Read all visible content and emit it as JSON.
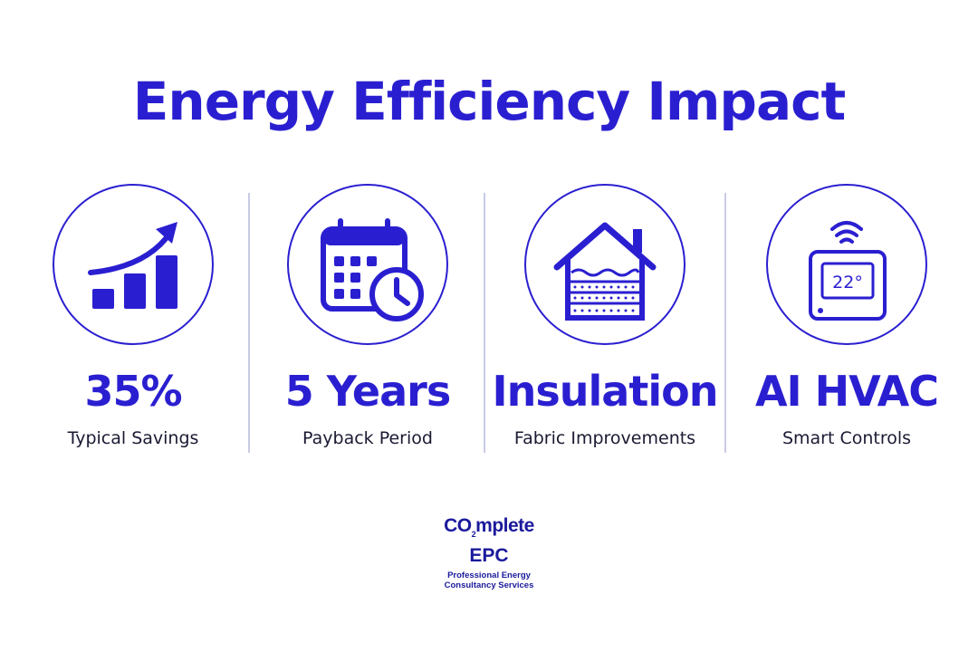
{
  "title": "Energy Efficiency Impact",
  "colors": {
    "accent": "#2a1fd0",
    "label_text": "#1a1a33",
    "divider": "#c9cbe6",
    "logo": "#1b1a9c"
  },
  "stats": [
    {
      "icon": "growth-chart-icon",
      "value": "35%",
      "label": "Typical Savings"
    },
    {
      "icon": "calendar-clock-icon",
      "value": "5 Years",
      "label": "Payback Period"
    },
    {
      "icon": "house-insulation-icon",
      "value": "Insulation",
      "label": "Fabric Improvements"
    },
    {
      "icon": "thermostat-icon",
      "value": "AI HVAC",
      "label": "Smart Controls",
      "display": "22°"
    }
  ],
  "logo": {
    "co": "CO",
    "sub": "2",
    "mplete": "mplete",
    "line2": "EPC",
    "line3": "Professional Energy",
    "line4": "Consultancy Services"
  }
}
